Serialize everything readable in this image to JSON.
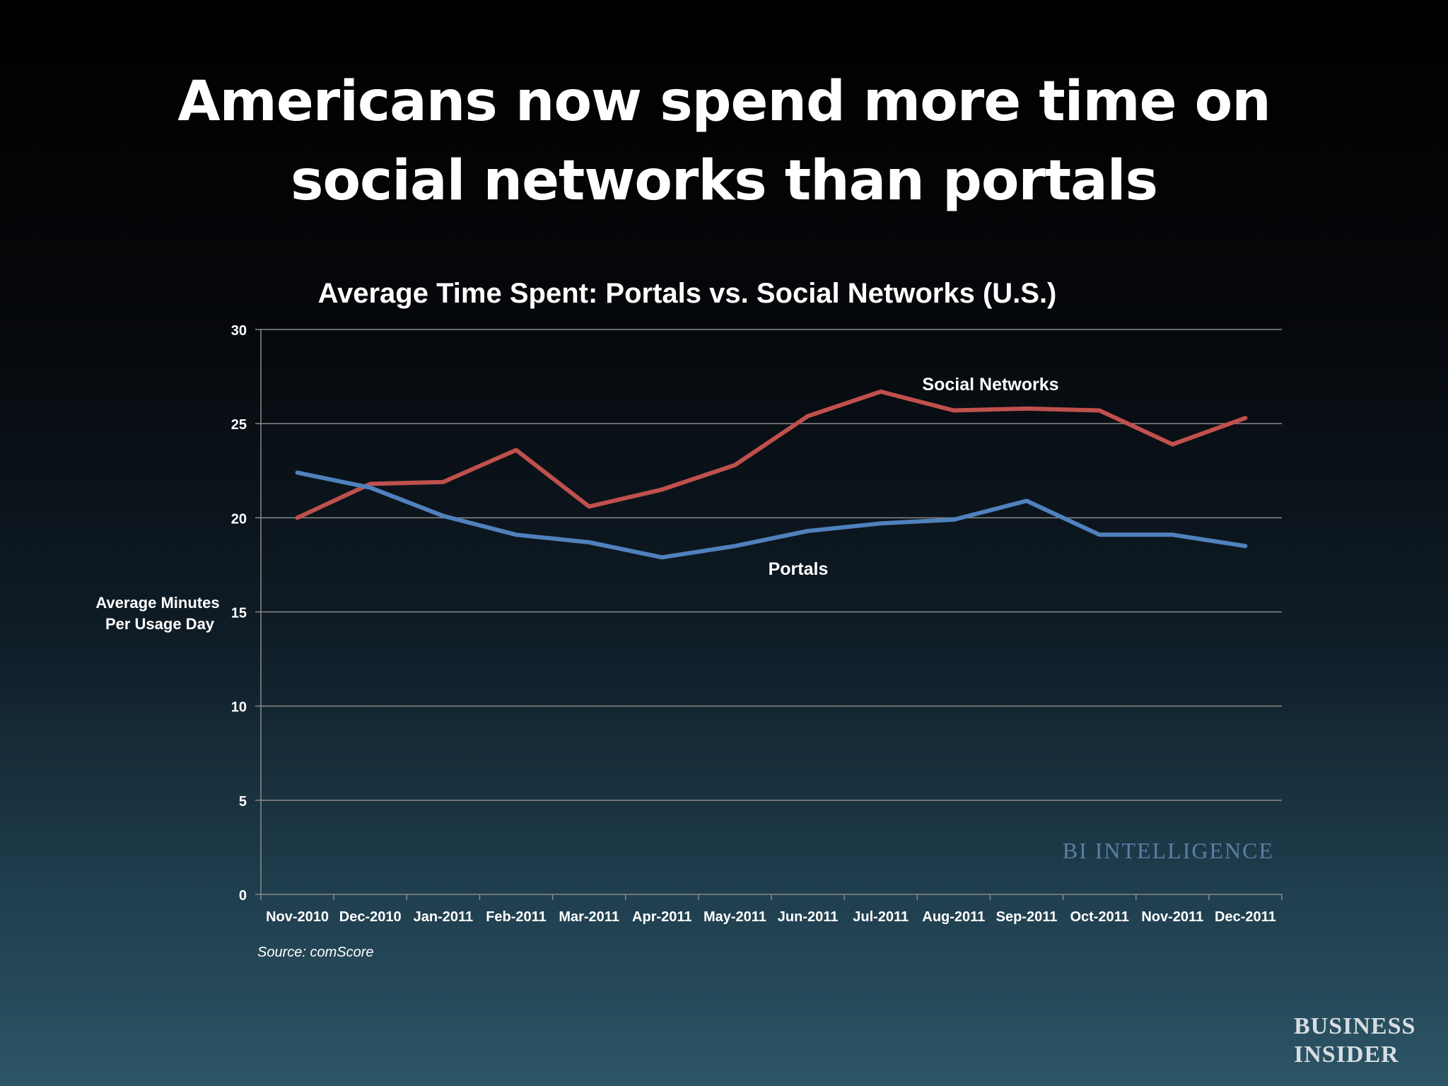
{
  "slide": {
    "title_line1": "Americans now spend more time on",
    "title_line2": "social networks than portals"
  },
  "chart_data": {
    "type": "line",
    "title": "Average Time Spent: Portals vs. Social Networks (U.S.)",
    "ylabel_line1": "Average Minutes",
    "ylabel_line2": "Per Usage Day",
    "xlabel": "",
    "categories": [
      "Nov-2010",
      "Dec-2010",
      "Jan-2011",
      "Feb-2011",
      "Mar-2011",
      "Apr-2011",
      "May-2011",
      "Jun-2011",
      "Jul-2011",
      "Aug-2011",
      "Sep-2011",
      "Oct-2011",
      "Nov-2011",
      "Dec-2011"
    ],
    "ylim": [
      0,
      30
    ],
    "yticks": [
      0,
      5,
      10,
      15,
      20,
      25,
      30
    ],
    "grid": true,
    "series": [
      {
        "name": "Social Networks",
        "color": "#c0504d",
        "values": [
          20.0,
          21.8,
          21.9,
          23.6,
          20.6,
          21.5,
          22.8,
          25.4,
          26.7,
          25.7,
          25.8,
          25.7,
          23.9,
          25.3
        ]
      },
      {
        "name": "Portals",
        "color": "#4f81bd",
        "values": [
          22.4,
          21.6,
          20.1,
          19.1,
          18.7,
          17.9,
          18.5,
          19.3,
          19.7,
          19.9,
          20.9,
          19.1,
          19.1,
          18.5
        ]
      }
    ],
    "source": "Source: comScore",
    "watermark": "BI INTELLIGENCE"
  },
  "brand": {
    "line1": "BUSINESS",
    "line2": "INSIDER"
  }
}
